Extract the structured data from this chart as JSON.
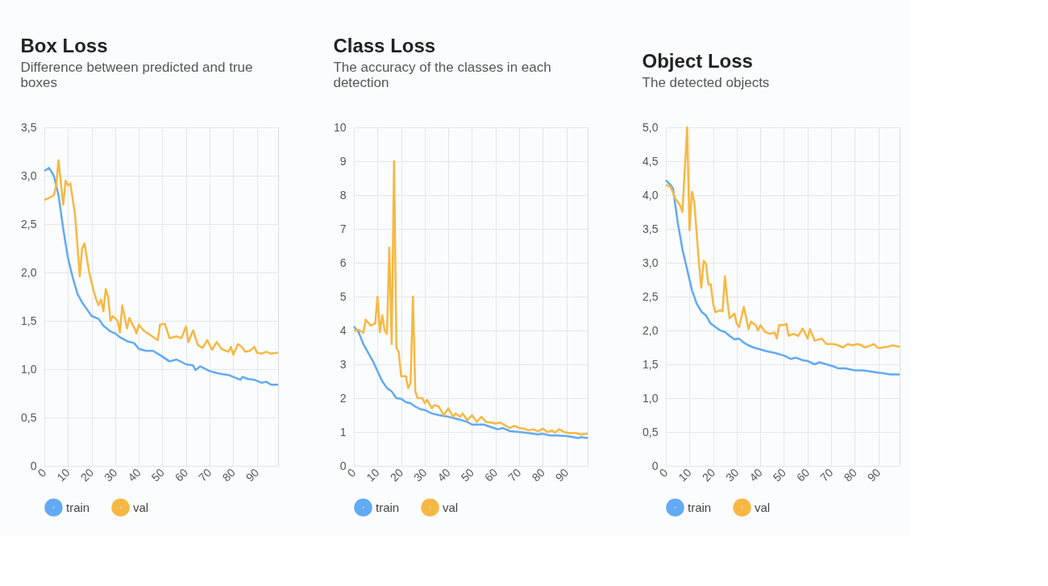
{
  "chart_data": [
    {
      "type": "line",
      "title": "Box Loss",
      "subtitle": "Difference between predicted and true boxes",
      "xlim": [
        0,
        99
      ],
      "xticks": [
        0,
        10,
        20,
        30,
        40,
        50,
        60,
        70,
        80,
        90
      ],
      "ylim": [
        0,
        3.5
      ],
      "yticks": [
        0,
        {
          "value": 0.5,
          "label": "0,5"
        },
        {
          "value": 1,
          "label": "1,0"
        },
        {
          "value": 1.5,
          "label": "1,5"
        },
        {
          "value": 2,
          "label": "2,0"
        },
        {
          "value": 2.5,
          "label": "2,5"
        },
        {
          "value": 3,
          "label": "3,0"
        },
        {
          "value": 3.5,
          "label": "3,5"
        }
      ],
      "grid": true,
      "legend": "bottom left",
      "line_style": "solid",
      "series": [
        {
          "name": "train",
          "color": "#62aaf3",
          "x": [
            0,
            2,
            4,
            6,
            8,
            10,
            12,
            14,
            16,
            18,
            20,
            23,
            25,
            28,
            30,
            32,
            35,
            38,
            40,
            43,
            46,
            50,
            53,
            56,
            60,
            63,
            64,
            66,
            70,
            73,
            75,
            78,
            80,
            83,
            84,
            86,
            89,
            92,
            94,
            96,
            99
          ],
          "values": [
            3.05,
            3.08,
            3.0,
            2.8,
            2.45,
            2.15,
            1.95,
            1.78,
            1.69,
            1.62,
            1.55,
            1.52,
            1.45,
            1.39,
            1.37,
            1.33,
            1.29,
            1.27,
            1.21,
            1.19,
            1.19,
            1.13,
            1.08,
            1.1,
            1.05,
            1.04,
            0.99,
            1.03,
            0.98,
            0.96,
            0.95,
            0.94,
            0.92,
            0.89,
            0.92,
            0.9,
            0.89,
            0.86,
            0.87,
            0.84,
            0.84
          ]
        },
        {
          "name": "val",
          "color": "#f7b843",
          "x": [
            0,
            2,
            4,
            5,
            6,
            8,
            9,
            10,
            11,
            13,
            15,
            16,
            17,
            19,
            21,
            22,
            23,
            24,
            25,
            26,
            27,
            28,
            29,
            31,
            32,
            33,
            35,
            36,
            38,
            39,
            40,
            42,
            45,
            48,
            49,
            51,
            53,
            56,
            58,
            60,
            61,
            63,
            65,
            67,
            69,
            71,
            73,
            75,
            78,
            79,
            80,
            82,
            84,
            85,
            87,
            89,
            90,
            92,
            94,
            96,
            99
          ],
          "values": [
            2.75,
            2.77,
            2.8,
            2.9,
            3.16,
            2.7,
            2.95,
            2.9,
            2.92,
            2.6,
            1.96,
            2.25,
            2.3,
            2.0,
            1.8,
            1.72,
            1.66,
            1.72,
            1.6,
            1.83,
            1.75,
            1.5,
            1.55,
            1.5,
            1.38,
            1.66,
            1.42,
            1.53,
            1.43,
            1.37,
            1.46,
            1.4,
            1.35,
            1.3,
            1.46,
            1.47,
            1.32,
            1.34,
            1.32,
            1.44,
            1.28,
            1.4,
            1.25,
            1.22,
            1.3,
            1.2,
            1.28,
            1.21,
            1.18,
            1.23,
            1.15,
            1.26,
            1.22,
            1.18,
            1.19,
            1.23,
            1.17,
            1.16,
            1.18,
            1.16,
            1.17
          ]
        }
      ]
    },
    {
      "type": "line",
      "title": "Class Loss",
      "subtitle": "The accuracy of the classes in each detection",
      "xlim": [
        0,
        99
      ],
      "xticks": [
        0,
        10,
        20,
        30,
        40,
        50,
        60,
        70,
        80,
        90
      ],
      "ylim": [
        0,
        10
      ],
      "yticks": [
        0,
        1,
        2,
        3,
        4,
        5,
        6,
        7,
        8,
        9,
        10
      ],
      "grid": true,
      "legend": "bottom left",
      "line_style": "solid",
      "series": [
        {
          "name": "train",
          "color": "#62aaf3",
          "x": [
            0,
            2,
            4,
            6,
            8,
            10,
            12,
            14,
            16,
            18,
            20,
            22,
            24,
            26,
            28,
            30,
            33,
            36,
            40,
            44,
            48,
            50,
            55,
            58,
            61,
            63,
            66,
            70,
            74,
            78,
            80,
            83,
            86,
            90,
            93,
            95,
            96,
            99
          ],
          "values": [
            4.12,
            3.95,
            3.6,
            3.35,
            3.1,
            2.8,
            2.5,
            2.3,
            2.2,
            2.0,
            1.98,
            1.88,
            1.85,
            1.75,
            1.68,
            1.65,
            1.55,
            1.5,
            1.45,
            1.38,
            1.3,
            1.22,
            1.22,
            1.15,
            1.08,
            1.12,
            1.03,
            1.0,
            0.97,
            0.93,
            0.95,
            0.9,
            0.9,
            0.88,
            0.85,
            0.82,
            0.85,
            0.82
          ]
        },
        {
          "name": "val",
          "color": "#f7b843",
          "x": [
            0,
            2,
            4,
            5,
            7,
            9,
            10,
            11,
            12,
            13,
            14,
            15,
            16,
            17,
            18,
            19,
            20,
            22,
            23,
            24,
            25,
            26,
            27,
            29,
            30,
            31,
            33,
            34,
            36,
            38,
            40,
            42,
            43,
            45,
            46,
            48,
            50,
            52,
            54,
            56,
            58,
            60,
            62,
            64,
            66,
            68,
            70,
            72,
            74,
            76,
            78,
            80,
            82,
            84,
            85,
            87,
            89,
            91,
            94,
            96,
            99
          ],
          "values": [
            4.0,
            4.02,
            3.93,
            4.32,
            4.15,
            4.2,
            5.0,
            3.95,
            4.45,
            4.0,
            3.9,
            6.45,
            3.6,
            9.0,
            3.5,
            3.35,
            2.65,
            2.65,
            2.3,
            2.45,
            5.0,
            2.2,
            2.0,
            2.0,
            1.85,
            1.95,
            1.7,
            1.8,
            1.75,
            1.5,
            1.7,
            1.45,
            1.55,
            1.45,
            1.55,
            1.35,
            1.5,
            1.3,
            1.45,
            1.3,
            1.28,
            1.25,
            1.28,
            1.2,
            1.12,
            1.18,
            1.12,
            1.1,
            1.05,
            1.08,
            1.02,
            1.1,
            1.0,
            1.05,
            0.98,
            1.08,
            1.0,
            0.97,
            0.97,
            0.93,
            0.95
          ]
        }
      ]
    },
    {
      "type": "line",
      "title": "Object Loss",
      "subtitle": "The detected objects",
      "xlim": [
        0,
        99
      ],
      "xticks": [
        0,
        10,
        20,
        30,
        40,
        50,
        60,
        70,
        80,
        90
      ],
      "ylim": [
        0,
        5
      ],
      "yticks": [
        0,
        {
          "value": 0.5,
          "label": "0,5"
        },
        {
          "value": 1,
          "label": "1,0"
        },
        {
          "value": 1.5,
          "label": "1,5"
        },
        {
          "value": 2,
          "label": "2,0"
        },
        {
          "value": 2.5,
          "label": "2,5"
        },
        {
          "value": 3,
          "label": "3,0"
        },
        {
          "value": 3.5,
          "label": "3,5"
        },
        {
          "value": 4,
          "label": "4,0"
        },
        {
          "value": 4.5,
          "label": "4,5"
        },
        {
          "value": 5,
          "label": "5,0"
        }
      ],
      "grid": true,
      "legend": "bottom left",
      "line_style": "solid",
      "series": [
        {
          "name": "train",
          "color": "#62aaf3",
          "x": [
            0,
            2,
            3,
            5,
            7,
            9,
            11,
            13,
            15,
            17,
            19,
            21,
            23,
            25,
            27,
            29,
            31,
            33,
            35,
            37,
            40,
            43,
            46,
            50,
            53,
            55,
            58,
            60,
            63,
            65,
            68,
            71,
            73,
            76,
            80,
            83,
            86,
            89,
            92,
            95,
            99
          ],
          "values": [
            4.22,
            4.15,
            4.1,
            3.6,
            3.2,
            2.9,
            2.6,
            2.4,
            2.28,
            2.22,
            2.1,
            2.05,
            2.0,
            1.98,
            1.92,
            1.87,
            1.88,
            1.82,
            1.78,
            1.75,
            1.72,
            1.69,
            1.67,
            1.63,
            1.58,
            1.6,
            1.56,
            1.55,
            1.5,
            1.53,
            1.5,
            1.47,
            1.44,
            1.44,
            1.41,
            1.41,
            1.4,
            1.38,
            1.37,
            1.35,
            1.35
          ]
        },
        {
          "name": "val",
          "color": "#f7b843",
          "x": [
            0,
            2,
            4,
            6,
            7,
            9,
            10,
            11,
            12,
            14,
            15,
            16,
            17,
            18,
            19,
            20,
            21,
            23,
            24,
            25,
            26,
            27,
            29,
            30,
            31,
            33,
            35,
            36,
            38,
            39,
            40,
            42,
            44,
            46,
            47,
            48,
            50,
            51,
            52,
            54,
            56,
            58,
            60,
            61,
            63,
            66,
            68,
            71,
            73,
            75,
            77,
            79,
            81,
            83,
            84,
            86,
            88,
            90,
            92,
            94,
            96,
            99
          ],
          "values": [
            4.15,
            4.12,
            3.95,
            3.85,
            3.75,
            5.0,
            3.48,
            4.05,
            3.9,
            3.0,
            2.63,
            3.03,
            2.98,
            2.68,
            2.68,
            2.4,
            2.27,
            2.3,
            2.28,
            2.8,
            2.45,
            2.18,
            2.25,
            2.1,
            2.05,
            2.35,
            2.02,
            2.13,
            2.08,
            2.0,
            2.08,
            1.98,
            1.95,
            1.97,
            1.88,
            2.08,
            2.08,
            2.1,
            1.92,
            1.95,
            1.92,
            2.03,
            1.88,
            2.02,
            1.85,
            1.88,
            1.8,
            1.8,
            1.78,
            1.75,
            1.8,
            1.78,
            1.8,
            1.78,
            1.75,
            1.77,
            1.8,
            1.74,
            1.75,
            1.76,
            1.78,
            1.76
          ]
        }
      ]
    }
  ]
}
